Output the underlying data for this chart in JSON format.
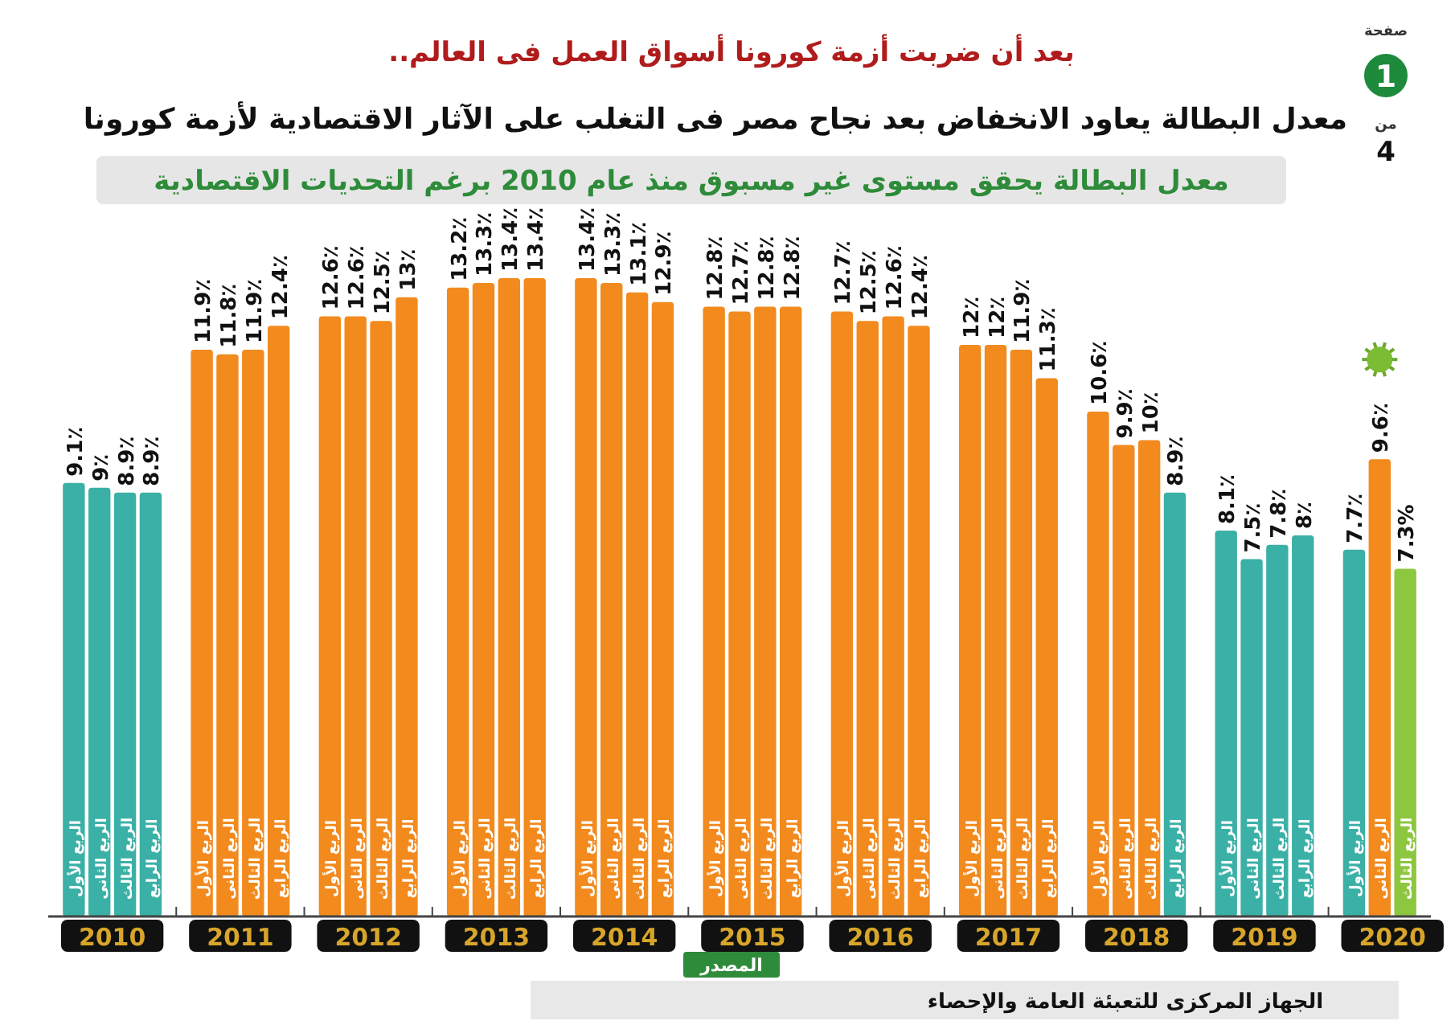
{
  "chart_data": {
    "type": "bar",
    "title": "معدل البطالة يعاود الانخفاض بعد نجاح مصر فى التغلب على الآثار الاقتصادية لأزمة كورونا",
    "subtitle": "معدل البطالة يحقق مستوى غير مسبوق منذ عام 2010 برغم التحديات الاقتصادية",
    "annotations": [
      "بعد أن ضربت أزمة كورونا أسواق العمل فى العالم..",
      "المصدر",
      "الجهاز المركزى للتعبئة العامة والإحصاء",
      "صفحة",
      "1",
      "من",
      "4",
      "2010",
      "2011",
      "2012",
      "2013",
      "2014",
      "2015",
      "2016",
      "2017",
      "2018",
      "2019",
      "2020"
    ],
    "categories": [
      "الربع الأول",
      "الربع الثانى",
      "الربع الثالث",
      "الربع الرابع",
      null,
      "الربع الأول",
      "الربع الثانى",
      "الربع الثالث",
      "الربع الرابع",
      null,
      "الربع الأول",
      "الربع الثانى",
      "الربع الثالث",
      "الربع الرابع",
      null,
      "الربع الأول",
      "الربع الثانى",
      "الربع الثالث",
      "الربع الرابع",
      null,
      "الربع الأول",
      "الربع الثانى",
      "الربع الثالث",
      "الربع الرابع",
      null,
      "الربع الأول",
      "الربع الثانى",
      "الربع الثالث",
      "الربع الرابع",
      null,
      "الربع الأول",
      "الربع الثانى",
      "الربع الثالث",
      "الربع الرابع",
      null,
      "الربع الأول",
      "الربع الثانى",
      "الربع الثالث",
      "الربع الرابع",
      null,
      "الربع الأول",
      "الربع الثانى",
      "الربع الثالث",
      "الربع الرابع",
      null,
      "الربع الأول",
      "الربع الثانى",
      "الربع الثالث",
      "الربع الرابع",
      null,
      "الربع الأول",
      "الربع الثانى",
      "الربع الثالث"
    ],
    "values": [
      9.1,
      9,
      8.9,
      8.9,
      null,
      11.9,
      11.8,
      11.9,
      12.4,
      null,
      12.6,
      12.6,
      12.5,
      13,
      null,
      13.2,
      13.3,
      13.4,
      13.4,
      null,
      13.4,
      13.3,
      13.1,
      12.9,
      null,
      12.8,
      12.7,
      12.8,
      12.8,
      null,
      12.7,
      12.5,
      12.6,
      12.4,
      null,
      12,
      12,
      11.9,
      11.3,
      null,
      10.6,
      9.9,
      10,
      8.9,
      null,
      8.1,
      7.5,
      7.8,
      8,
      null,
      7.7,
      9.6,
      7.3
    ],
    "value_labels": [
      "9.1٪",
      "9٪",
      "8.9٪",
      "8.9٪",
      null,
      "11.9٪",
      "11.8٪",
      "11.9٪",
      "12.4٪",
      null,
      "12.6٪",
      "12.6٪",
      "12.5٪",
      "13٪",
      null,
      "13.2٪",
      "13.3٪",
      "13.4٪",
      "13.4٪",
      null,
      "13.4٪",
      "13.3٪",
      "13.1٪",
      "12.9٪",
      null,
      "12.8٪",
      "12.7٪",
      "12.8٪",
      "12.8٪",
      null,
      "12.7٪",
      "12.5٪",
      "12.6٪",
      "12.4٪",
      null,
      "12٪",
      "12٪",
      "11.9٪",
      "11.3٪",
      null,
      "10.6٪",
      "9.9٪",
      "10٪",
      "8.9٪",
      null,
      "8.1٪",
      "7.5٪",
      "7.8٪",
      "8٪",
      null,
      "7.7٪",
      "9.6٪",
      "7.3%"
    ],
    "colors": [
      "#3bb0a6",
      "#3bb0a6",
      "#3bb0a6",
      "#3bb0a6",
      null,
      "#f28a1e",
      "#f28a1e",
      "#f28a1e",
      "#f28a1e",
      null,
      "#f28a1e",
      "#f28a1e",
      "#f28a1e",
      "#f28a1e",
      null,
      "#f28a1e",
      "#f28a1e",
      "#f28a1e",
      "#f28a1e",
      null,
      "#f28a1e",
      "#f28a1e",
      "#f28a1e",
      "#f28a1e",
      null,
      "#f28a1e",
      "#f28a1e",
      "#f28a1e",
      "#f28a1e",
      null,
      "#f28a1e",
      "#f28a1e",
      "#f28a1e",
      "#f28a1e",
      null,
      "#f28a1e",
      "#f28a1e",
      "#f28a1e",
      "#f28a1e",
      null,
      "#f28a1e",
      "#f28a1e",
      "#f28a1e",
      "#3bb0a6",
      null,
      "#3bb0a6",
      "#3bb0a6",
      "#3bb0a6",
      "#3bb0a6",
      null,
      "#3bb0a6",
      "#f28a1e",
      "#8dc63f"
    ]
  }
}
